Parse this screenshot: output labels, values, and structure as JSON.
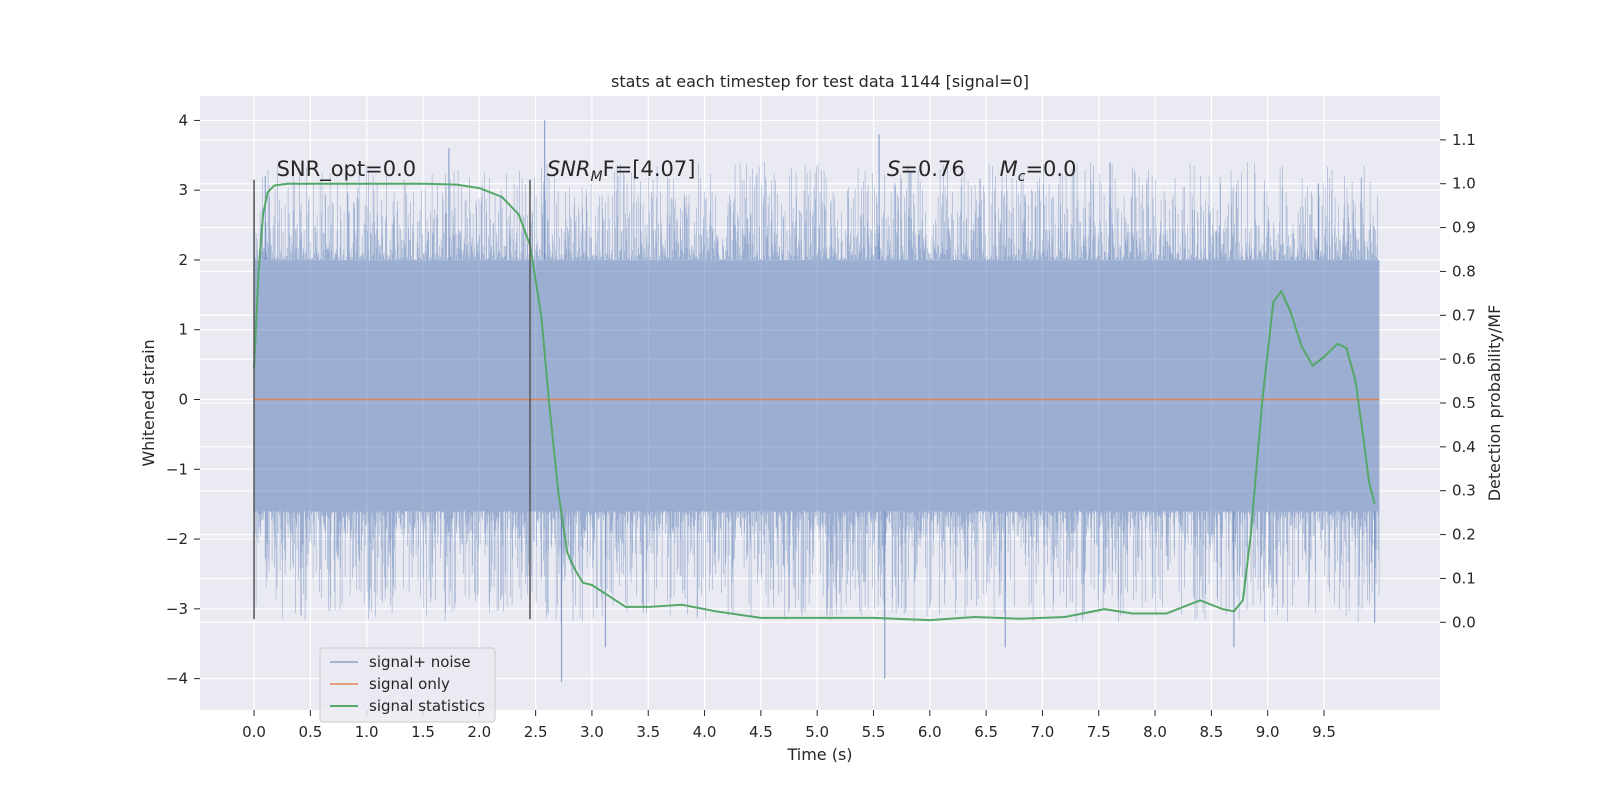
{
  "chart_data": {
    "type": "line",
    "title": "stats at each timestep for test data 1144 [signal=0]",
    "xlabel": "Time (s)",
    "ylabel_left": "Whitened strain",
    "ylabel_right": "Detection probability/MF",
    "xlim": [
      -0.48,
      10.53
    ],
    "ylim_left": [
      -4.45,
      4.35
    ],
    "ylim_right": [
      -0.2,
      1.2
    ],
    "x_ticks": [
      0.0,
      0.5,
      1.0,
      1.5,
      2.0,
      2.5,
      3.0,
      3.5,
      4.0,
      4.5,
      5.0,
      5.5,
      6.0,
      6.5,
      7.0,
      7.5,
      8.0,
      8.5,
      9.0,
      9.5
    ],
    "x_tick_labels": [
      "0.0",
      "0.5",
      "1.0",
      "1.5",
      "2.0",
      "2.5",
      "3.0",
      "3.5",
      "4.0",
      "4.5",
      "5.0",
      "5.5",
      "6.0",
      "6.5",
      "7.0",
      "7.5",
      "8.0",
      "8.5",
      "9.0",
      "9.5"
    ],
    "y_left_ticks": [
      4,
      3,
      2,
      1,
      0,
      -1,
      -2,
      -3,
      -4
    ],
    "y_left_tick_labels": [
      "4",
      "3",
      "2",
      "1",
      "0",
      "−1",
      "−2",
      "−3",
      "−4"
    ],
    "y_right_ticks": [
      1.1,
      1.0,
      0.9,
      0.8,
      0.7,
      0.6,
      0.5,
      0.4,
      0.3,
      0.2,
      0.1,
      0.0
    ],
    "y_right_tick_labels": [
      "1.1",
      "1.0",
      "0.9",
      "0.8",
      "0.7",
      "0.6",
      "0.5",
      "0.4",
      "0.3",
      "0.2",
      "0.1",
      "0.0"
    ],
    "grid": true,
    "legend_position": "lower-left",
    "noise_band": {
      "x_range": [
        0.0,
        9.99
      ],
      "typical_range": [
        -1.6,
        2.0
      ],
      "extremes": [
        -4.0,
        4.0
      ]
    },
    "series": [
      {
        "name": "signal+ noise",
        "axis": "left",
        "color": "#4c72b0",
        "style": "noise",
        "peaks": [
          [
            0.1,
            3.2
          ],
          [
            1.73,
            3.6
          ],
          [
            2.58,
            4.0
          ],
          [
            5.55,
            3.8
          ],
          [
            7.6,
            3.4
          ],
          [
            9.45,
            3.1
          ]
        ],
        "troughs": [
          [
            2.73,
            -4.05
          ],
          [
            3.12,
            -3.55
          ],
          [
            5.6,
            -4.0
          ],
          [
            6.67,
            -3.55
          ],
          [
            8.7,
            -3.55
          ],
          [
            9.95,
            -3.2
          ]
        ]
      },
      {
        "name": "signal only",
        "axis": "left",
        "color": "#dd8452",
        "x": [
          0.0,
          9.99
        ],
        "y": [
          0.0,
          0.0
        ]
      },
      {
        "name": "signal statistics",
        "axis": "right",
        "color": "#55a868",
        "x": [
          0.0,
          0.04,
          0.08,
          0.12,
          0.18,
          0.3,
          0.5,
          1.0,
          1.5,
          1.8,
          2.0,
          2.2,
          2.35,
          2.45,
          2.55,
          2.62,
          2.7,
          2.78,
          2.85,
          2.92,
          3.0,
          3.15,
          3.3,
          3.5,
          3.8,
          4.1,
          4.5,
          5.0,
          5.5,
          6.0,
          6.4,
          6.8,
          7.2,
          7.55,
          7.8,
          8.1,
          8.4,
          8.6,
          8.7,
          8.78,
          8.85,
          8.95,
          9.05,
          9.12,
          9.2,
          9.3,
          9.4,
          9.5,
          9.62,
          9.7,
          9.78,
          9.85,
          9.9,
          9.95
        ],
        "y": [
          0.58,
          0.8,
          0.93,
          0.98,
          0.996,
          1.0,
          1.0,
          1.0,
          1.0,
          0.998,
          0.99,
          0.97,
          0.93,
          0.86,
          0.7,
          0.5,
          0.3,
          0.16,
          0.12,
          0.09,
          0.085,
          0.06,
          0.035,
          0.035,
          0.04,
          0.025,
          0.01,
          0.01,
          0.01,
          0.005,
          0.012,
          0.008,
          0.012,
          0.03,
          0.02,
          0.02,
          0.05,
          0.03,
          0.025,
          0.05,
          0.2,
          0.5,
          0.73,
          0.755,
          0.71,
          0.63,
          0.585,
          0.605,
          0.635,
          0.625,
          0.55,
          0.42,
          0.32,
          0.27
        ]
      }
    ],
    "vlines": [
      {
        "x": 0.0,
        "y_range": [
          -3.15,
          3.15
        ]
      },
      {
        "x": 2.45,
        "y_range": [
          -3.15,
          3.15
        ]
      }
    ],
    "annotations": [
      {
        "id": "snr-opt",
        "x": 0.2,
        "y": 3.2,
        "prefix": "SNR_opt=0.0",
        "italic": "",
        "sub": "",
        "suffix": ""
      },
      {
        "id": "snr-mf",
        "x": 2.6,
        "y": 3.2,
        "prefix": "",
        "italic": "SNR",
        "sub": "M",
        "suffix": "F=[4.07]"
      },
      {
        "id": "s-stat",
        "x": 5.62,
        "y": 3.2,
        "prefix": "",
        "italic": "S",
        "sub": "",
        "suffix": "=0.76"
      },
      {
        "id": "mc",
        "x": 6.62,
        "y": 3.2,
        "prefix": "",
        "italic": "M",
        "sub": "c",
        "suffix": "=0.0"
      }
    ]
  }
}
